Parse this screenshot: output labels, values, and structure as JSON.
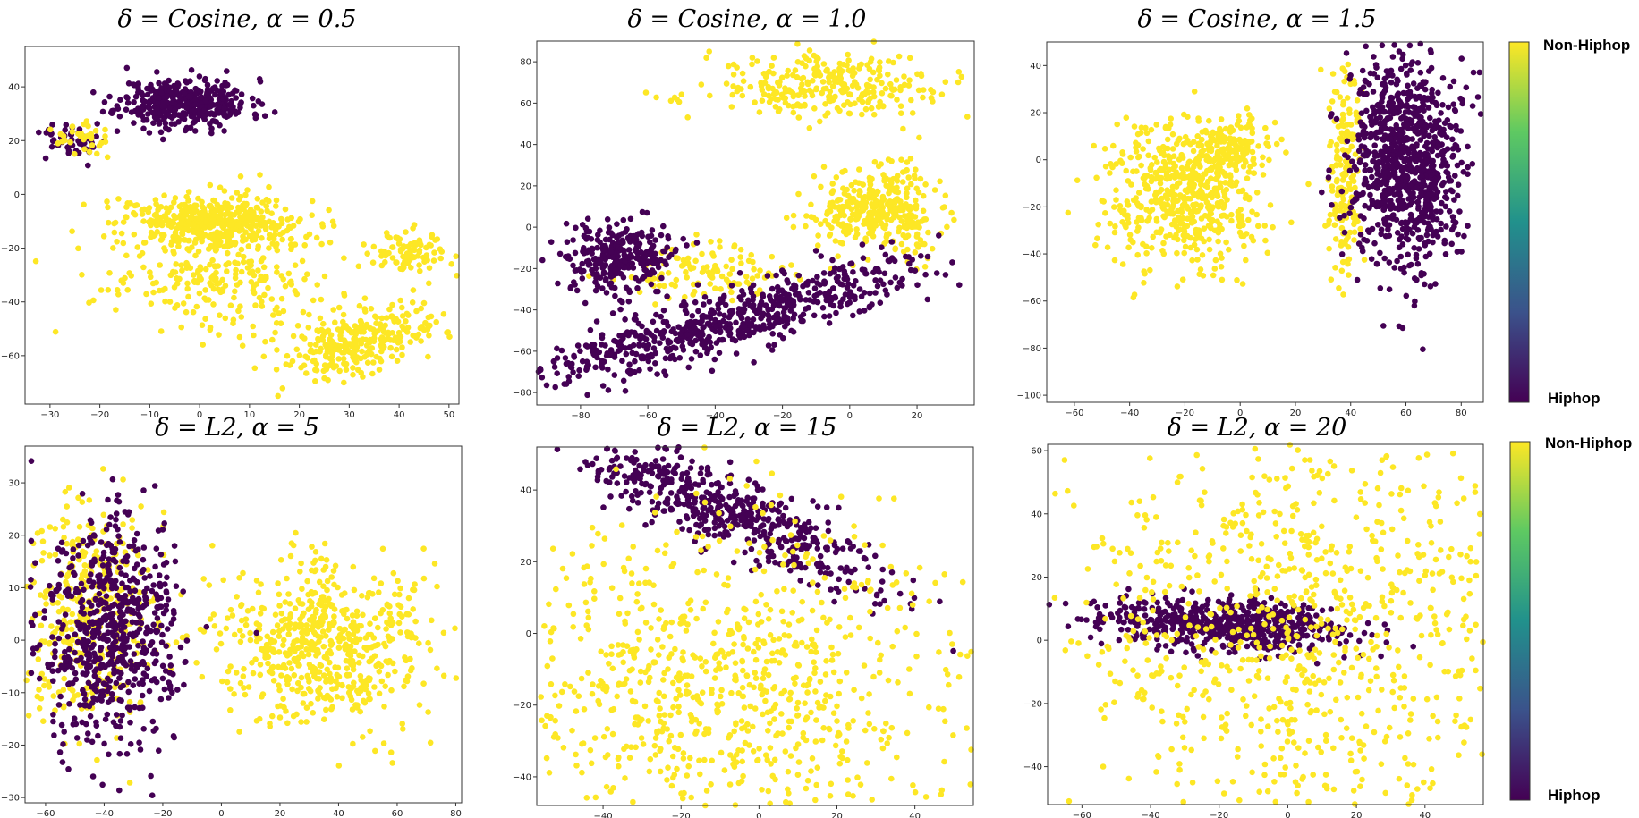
{
  "colors": {
    "hiphop": "#440154",
    "non_hiphop": "#fde725"
  },
  "colorbars": [
    {
      "top_label": "Non-Hiphop",
      "bottom_label": "Hiphop"
    },
    {
      "top_label": "Non-Hiphop",
      "bottom_label": "Hiphop"
    }
  ],
  "chart_data": [
    {
      "type": "scatter",
      "title": "δ = Cosine, α = 0.5",
      "xlim": [
        -35,
        52
      ],
      "ylim": [
        -78,
        55
      ],
      "xticks": [
        -30,
        -20,
        -10,
        0,
        10,
        20,
        30,
        40,
        50
      ],
      "yticks": [
        -60,
        -40,
        -20,
        0,
        20,
        40
      ],
      "clusters": [
        {
          "label": "Hiphop",
          "cx": -3,
          "cy": 34,
          "sx": 6.5,
          "sy": 4.5,
          "n": 420,
          "seed": 11
        },
        {
          "label": "Hiphop",
          "cx": -25,
          "cy": 20,
          "sx": 4,
          "sy": 3,
          "n": 50,
          "seed": 12
        },
        {
          "label": "Non-Hiphop",
          "cx": -23,
          "cy": 21,
          "sx": 3,
          "sy": 3,
          "n": 35,
          "seed": 13
        },
        {
          "label": "Non-Hiphop",
          "cx": 3,
          "cy": -10,
          "sx": 9,
          "sy": 5,
          "n": 450,
          "seed": 14
        },
        {
          "label": "Non-Hiphop",
          "cx": 5,
          "cy": -30,
          "sx": 12,
          "sy": 10,
          "n": 250,
          "seed": 15
        },
        {
          "label": "Non-Hiphop",
          "cx": 32,
          "cy": -55,
          "sx": 5,
          "sy": 9,
          "rot": -0.9,
          "n": 280,
          "seed": 16
        },
        {
          "label": "Non-Hiphop",
          "cx": 42,
          "cy": -22,
          "sx": 4,
          "sy": 4,
          "n": 90,
          "seed": 17
        }
      ]
    },
    {
      "type": "scatter",
      "title": "δ = Cosine, α = 1.0",
      "xlim": [
        -93,
        37
      ],
      "ylim": [
        -86,
        90
      ],
      "xticks": [
        -80,
        -60,
        -40,
        -20,
        0,
        20
      ],
      "yticks": [
        -80,
        -60,
        -40,
        -20,
        0,
        20,
        40,
        60,
        80
      ],
      "clusters": [
        {
          "label": "Non-Hiphop",
          "cx": -5,
          "cy": 68,
          "sx": 18,
          "sy": 8,
          "n": 300,
          "seed": 21
        },
        {
          "label": "Non-Hiphop",
          "cx": 8,
          "cy": 8,
          "sx": 9,
          "sy": 10,
          "n": 350,
          "seed": 22
        },
        {
          "label": "Non-Hiphop",
          "cx": -45,
          "cy": -22,
          "sx": 12,
          "sy": 6,
          "n": 120,
          "seed": 23
        },
        {
          "label": "Hiphop",
          "cx": -70,
          "cy": -15,
          "sx": 8,
          "sy": 9,
          "n": 300,
          "seed": 24
        },
        {
          "label": "Hiphop",
          "cx": -35,
          "cy": -45,
          "sx": 32,
          "sy": 7,
          "rot": 0.45,
          "n": 650,
          "seed": 25
        }
      ]
    },
    {
      "type": "scatter",
      "title": "δ = Cosine, α = 1.5",
      "xlim": [
        -70,
        88
      ],
      "ylim": [
        -103,
        50
      ],
      "xticks": [
        -60,
        -40,
        -20,
        0,
        20,
        40,
        60,
        80
      ],
      "yticks": [
        -100,
        -80,
        -60,
        -40,
        -20,
        0,
        20,
        40
      ],
      "clusters": [
        {
          "label": "Non-Hiphop",
          "cx": -20,
          "cy": -15,
          "sx": 14,
          "sy": 15,
          "n": 550,
          "seed": 31
        },
        {
          "label": "Non-Hiphop",
          "cx": -5,
          "cy": 5,
          "sx": 8,
          "sy": 6,
          "n": 150,
          "seed": 32
        },
        {
          "label": "Non-Hiphop",
          "cx": 38,
          "cy": -5,
          "sx": 3,
          "sy": 22,
          "n": 180,
          "seed": 33
        },
        {
          "label": "Hiphop",
          "cx": 60,
          "cy": -2,
          "sx": 10,
          "sy": 22,
          "n": 900,
          "seed": 34
        }
      ]
    },
    {
      "type": "scatter",
      "title": "δ = L2, α = 5",
      "xlim": [
        -67,
        82
      ],
      "ylim": [
        -31,
        37
      ],
      "xticks": [
        -60,
        -40,
        -20,
        0,
        20,
        40,
        60,
        80
      ],
      "yticks": [
        -30,
        -20,
        -10,
        0,
        10,
        20,
        30
      ],
      "clusters": [
        {
          "label": "Non-Hiphop",
          "cx": 35,
          "cy": -1,
          "sx": 18,
          "sy": 8,
          "n": 600,
          "seed": 41
        },
        {
          "label": "Non-Hiphop",
          "cx": -45,
          "cy": 5,
          "sx": 12,
          "sy": 12,
          "n": 350,
          "seed": 42
        },
        {
          "label": "Hiphop",
          "cx": -38,
          "cy": 2,
          "sx": 12,
          "sy": 11,
          "n": 650,
          "seed": 43
        }
      ]
    },
    {
      "type": "scatter",
      "title": "δ = L2, α = 15",
      "xlim": [
        -57,
        55
      ],
      "ylim": [
        -48,
        52
      ],
      "xticks": [
        -40,
        -20,
        0,
        20,
        40
      ],
      "yticks": [
        -40,
        -20,
        0,
        20,
        40
      ],
      "clusters": [
        {
          "label": "Hiphop",
          "cx": -7,
          "cy": 33,
          "sx": 22,
          "sy": 5,
          "rot": -0.45,
          "n": 550,
          "seed": 51
        },
        {
          "label": "Non-Hiphop",
          "cx": -10,
          "cy": -15,
          "sx": 30,
          "sy": 25,
          "n": 900,
          "seed": 52
        }
      ]
    },
    {
      "type": "scatter",
      "title": "δ = L2, α = 20",
      "xlim": [
        -70,
        57
      ],
      "ylim": [
        -52,
        62
      ],
      "xticks": [
        -60,
        -40,
        -20,
        0,
        20,
        40
      ],
      "yticks": [
        -40,
        -20,
        0,
        20,
        40,
        60
      ],
      "clusters": [
        {
          "label": "Hiphop",
          "cx": -18,
          "cy": 5,
          "sx": 18,
          "sy": 4,
          "rot": -0.05,
          "n": 600,
          "seed": 61
        },
        {
          "label": "Non-Hiphop",
          "cx": 5,
          "cy": 5,
          "sx": 35,
          "sy": 40,
          "n": 1000,
          "seed": 62
        }
      ]
    }
  ]
}
